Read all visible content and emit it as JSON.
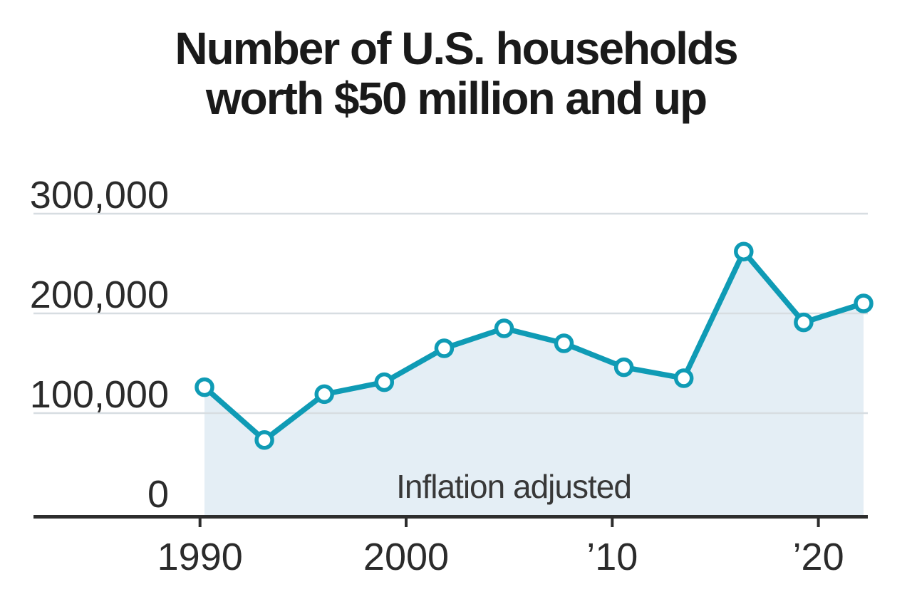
{
  "chart_data": {
    "type": "line",
    "title": "Number of U.S. households worth $50 million and up",
    "title_lines": [
      "Number of U.S. households",
      "worth $50 million and up"
    ],
    "annotation": "Inflation adjusted",
    "x": [
      1989,
      1992,
      1995,
      1998,
      2001,
      2004,
      2007,
      2010,
      2013,
      2016,
      2019,
      2022
    ],
    "values": [
      126000,
      73000,
      119000,
      131000,
      165000,
      185000,
      170000,
      146000,
      135000,
      262000,
      191000,
      210000
    ],
    "series_name": "Households worth $50 million and up",
    "ylim": [
      0,
      300000
    ],
    "yticks": [
      0,
      100000,
      200000,
      300000
    ],
    "ytick_labels": [
      "0",
      "100,000",
      "200,000",
      "300,000"
    ],
    "xticks": [
      1990,
      2000,
      2010,
      2020
    ],
    "xtick_labels": [
      "1990",
      "2000",
      "’10",
      "’20"
    ],
    "grid": true,
    "legend_position": "none",
    "marker": "open-circle",
    "area_fill": true,
    "colors": {
      "line": "#0f9bb5",
      "marker_fill": "#ffffff",
      "area": "#e4eef5",
      "gridline": "#d7dde1",
      "axis_line": "#2d2d2d",
      "tick_label": "#2b2b2b",
      "annotation_text": "#383838",
      "title_text": "#1a1a1a",
      "background": "#ffffff"
    }
  }
}
